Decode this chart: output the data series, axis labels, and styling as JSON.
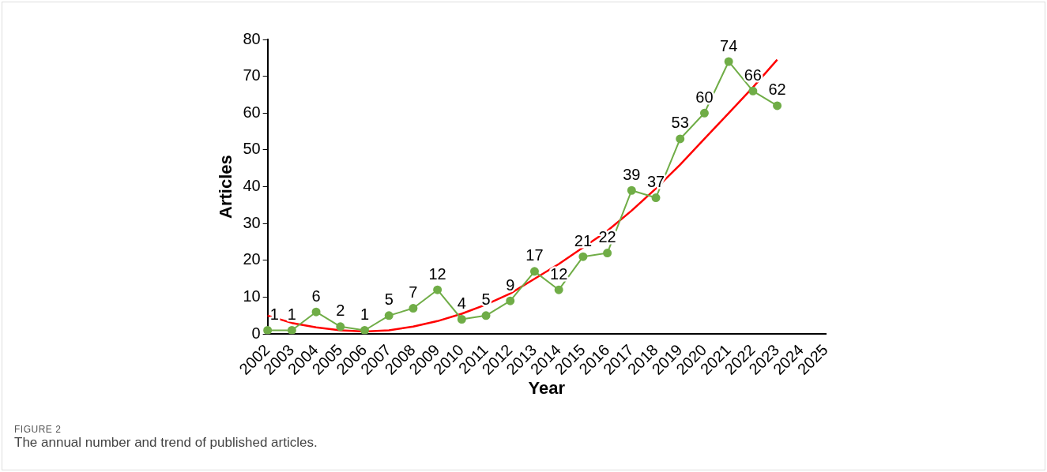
{
  "chart_data": {
    "type": "line",
    "xlabel": "Year",
    "ylabel": "Articles",
    "categories": [
      "2002",
      "2003",
      "2004",
      "2005",
      "2006",
      "2007",
      "2008",
      "2009",
      "2010",
      "2011",
      "2012",
      "2013",
      "2014",
      "2015",
      "2016",
      "2017",
      "2018",
      "2019",
      "2020",
      "2021",
      "2022",
      "2023",
      "2024",
      "2025"
    ],
    "series": [
      {
        "color": "#70ad47",
        "marker": "circle",
        "values": [
          1,
          1,
          6,
          2,
          1,
          5,
          7,
          12,
          4,
          5,
          9,
          17,
          12,
          21,
          22,
          39,
          37,
          53,
          60,
          74,
          66,
          62,
          null,
          null
        ],
        "value_labels": [
          "1",
          "1",
          "6",
          "2",
          "1",
          "5",
          "7",
          "12",
          "4",
          "5",
          "9",
          "17",
          "12",
          "21",
          "22",
          "39",
          "37",
          "53",
          "60",
          "74",
          "66",
          "62",
          null,
          null
        ]
      },
      {
        "color": "#ff0000",
        "marker": "none",
        "values": [
          5,
          3,
          1.8,
          1,
          0.7,
          1,
          2,
          3.5,
          5.5,
          8,
          11,
          15,
          19,
          23.5,
          28,
          33.5,
          39.5,
          46,
          53,
          60,
          67,
          74.5,
          null,
          null
        ]
      }
    ],
    "ylim": [
      0,
      80
    ],
    "yticks": [
      0,
      10,
      20,
      30,
      40,
      50,
      60,
      70,
      80
    ],
    "grid": false,
    "legend": false,
    "annotations": [
      "FIGURE 2",
      "The annual number and trend of published articles."
    ]
  }
}
